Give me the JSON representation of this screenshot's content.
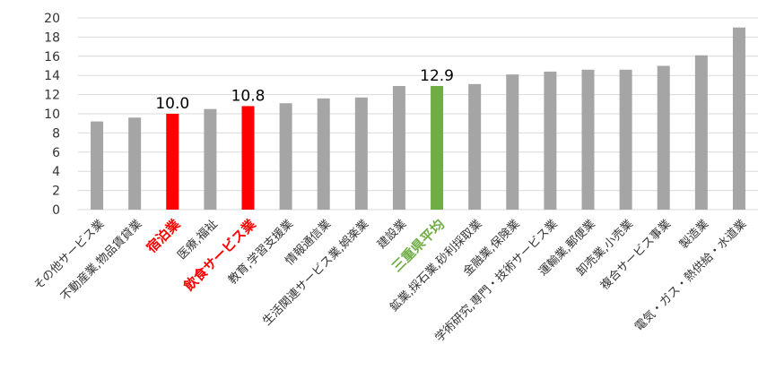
{
  "chart_data": {
    "type": "bar",
    "title": "",
    "xlabel": "",
    "ylabel": "",
    "ylim": [
      0,
      20
    ],
    "yticks": [
      0,
      2,
      4,
      6,
      8,
      10,
      12,
      14,
      16,
      18,
      20
    ],
    "grid": true,
    "legend": "none",
    "categories": [
      "その他サービス業",
      "不動産業,物品賃貸業",
      "宿泊業",
      "医療,福祉",
      "飲食サービス業",
      "教育,学習支援業",
      "情報通信業",
      "生活関連サービス業,娯楽業",
      "建設業",
      "三重県平均",
      "鉱業,採石業,砂利採取業",
      "金融業,保険業",
      "学術研究,専門・技術サービス業",
      "運輸業,郵便業",
      "卸売業,小売業",
      "複合サービス事業",
      "製造業",
      "電気・ガス・熱供給・水道業"
    ],
    "values": [
      9.2,
      9.6,
      10.0,
      10.5,
      10.8,
      11.1,
      11.6,
      11.7,
      12.9,
      12.9,
      13.1,
      14.1,
      14.4,
      14.6,
      14.6,
      15.0,
      16.1,
      19.0
    ],
    "data_labels": [
      {
        "index": 2,
        "text": "10.0"
      },
      {
        "index": 4,
        "text": "10.8"
      },
      {
        "index": 9,
        "text": "12.9"
      }
    ],
    "colors": {
      "default": "#a5a5a5",
      "highlight_red": "#ff0000",
      "highlight_green": "#70ad47",
      "grid": "#d9d9d9",
      "label_default": "#333333"
    },
    "highlight": {
      "red": [
        2,
        4
      ],
      "green": [
        9
      ]
    }
  }
}
